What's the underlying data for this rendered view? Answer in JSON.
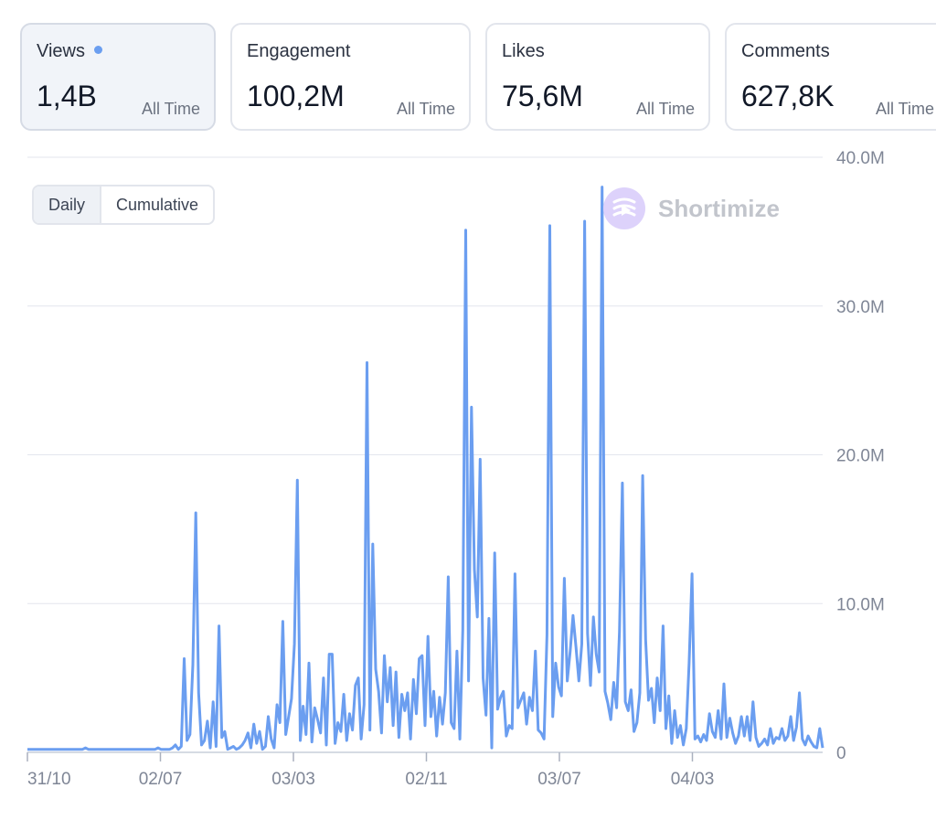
{
  "cards": [
    {
      "label": "Views",
      "value": "1,4B",
      "period": "All Time",
      "active": true
    },
    {
      "label": "Engagement",
      "value": "100,2M",
      "period": "All Time",
      "active": false
    },
    {
      "label": "Likes",
      "value": "75,6M",
      "period": "All Time",
      "active": false
    },
    {
      "label": "Comments",
      "value": "627,8K",
      "period": "All Time",
      "active": false
    }
  ],
  "toggle": {
    "daily": "Daily",
    "cumulative": "Cumulative"
  },
  "brand": {
    "name": "Shortimize"
  },
  "colors": {
    "line": "#6b9ef0",
    "grid": "#e3e6ee",
    "axis": "#7f8696"
  },
  "chart_data": {
    "type": "line",
    "ylim": [
      0,
      40
    ],
    "yticks": [
      {
        "value": 40,
        "label": "40.0M"
      },
      {
        "value": 30,
        "label": "30.0M"
      },
      {
        "value": 20,
        "label": "20.0M"
      },
      {
        "value": 10,
        "label": "10.0M"
      },
      {
        "value": 0,
        "label": "0"
      }
    ],
    "xticks": [
      "31/10",
      "02/07",
      "03/03",
      "02/11",
      "03/07",
      "04/03"
    ],
    "y_unit": "M",
    "series": [
      {
        "values": [
          0.2,
          0.2,
          0.2,
          0.2,
          0.2,
          0.2,
          0.2,
          0.2,
          0.2,
          0.2,
          0.2,
          0.2,
          0.2,
          0.2,
          0.2,
          0.2,
          0.2,
          0.2,
          0.2,
          0.2,
          0.3,
          0.2,
          0.2,
          0.2,
          0.2,
          0.2,
          0.2,
          0.2,
          0.2,
          0.2,
          0.2,
          0.2,
          0.2,
          0.2,
          0.2,
          0.2,
          0.2,
          0.2,
          0.2,
          0.2,
          0.2,
          0.2,
          0.2,
          0.2,
          0.2,
          0.3,
          0.2,
          0.2,
          0.2,
          0.2,
          0.3,
          0.5,
          0.2,
          0.4,
          6.3,
          0.8,
          1.2,
          5.9,
          16.1,
          4.0,
          0.5,
          0.8,
          2.1,
          0.3,
          3.4,
          0.4,
          8.5,
          1.0,
          1.4,
          0.2,
          0.3,
          0.4,
          0.2,
          0.3,
          0.5,
          0.8,
          1.3,
          0.3,
          1.9,
          0.6,
          1.4,
          0.2,
          0.4,
          2.4,
          0.9,
          0.3,
          3.2,
          2.0,
          8.8,
          1.2,
          2.4,
          3.6,
          7.3,
          18.3,
          0.8,
          3.1,
          1.2,
          6.0,
          0.7,
          3.0,
          2.2,
          1.3,
          5.0,
          0.5,
          6.6,
          6.6,
          0.6,
          2.0,
          1.4,
          3.9,
          0.8,
          2.6,
          1.5,
          4.5,
          5.0,
          0.9,
          3.2,
          26.2,
          1.5,
          14.0,
          5.6,
          4.1,
          1.3,
          6.5,
          3.4,
          5.7,
          1.8,
          5.4,
          1.0,
          3.9,
          2.8,
          4.0,
          0.9,
          4.9,
          2.6,
          6.3,
          6.5,
          1.8,
          7.8,
          2.4,
          4.1,
          1.1,
          3.7,
          1.9,
          4.0,
          11.8,
          2.0,
          1.6,
          6.8,
          0.9,
          8.2,
          35.1,
          4.8,
          23.2,
          12.3,
          9.1,
          19.7,
          5.0,
          2.5,
          9.0,
          0.3,
          13.4,
          2.9,
          3.7,
          4.1,
          1.1,
          1.8,
          1.6,
          12.0,
          3.0,
          3.5,
          4.0,
          1.9,
          3.7,
          2.8,
          6.8,
          1.5,
          1.3,
          0.9,
          7.9,
          35.4,
          2.4,
          6.0,
          4.4,
          3.8,
          11.7,
          4.8,
          6.8,
          9.2,
          7.1,
          4.8,
          7.3,
          35.7,
          8.0,
          4.5,
          9.1,
          6.6,
          5.4,
          38.0,
          4.1,
          3.3,
          2.2,
          4.7,
          3.0,
          8.1,
          18.1,
          3.4,
          2.8,
          4.2,
          1.4,
          2.0,
          4.0,
          18.6,
          7.6,
          3.5,
          4.3,
          2.0,
          5.0,
          2.8,
          8.5,
          1.6,
          3.8,
          0.6,
          2.8,
          1.0,
          1.8,
          0.5,
          1.6,
          6.0,
          12.0,
          0.9,
          1.1,
          0.7,
          1.2,
          0.8,
          2.6,
          1.4,
          1.0,
          2.8,
          0.9,
          4.6,
          1.0,
          2.3,
          1.3,
          0.6,
          1.1,
          2.4,
          1.1,
          2.4,
          0.8,
          3.4,
          1.0,
          0.4,
          0.6,
          0.9,
          0.5,
          1.6,
          0.6,
          1.0,
          0.9,
          1.6,
          0.8,
          1.1,
          2.4,
          0.8,
          1.7,
          4.0,
          0.9,
          0.5,
          1.1,
          0.7,
          0.4,
          0.3,
          1.6,
          0.3
        ]
      }
    ]
  }
}
